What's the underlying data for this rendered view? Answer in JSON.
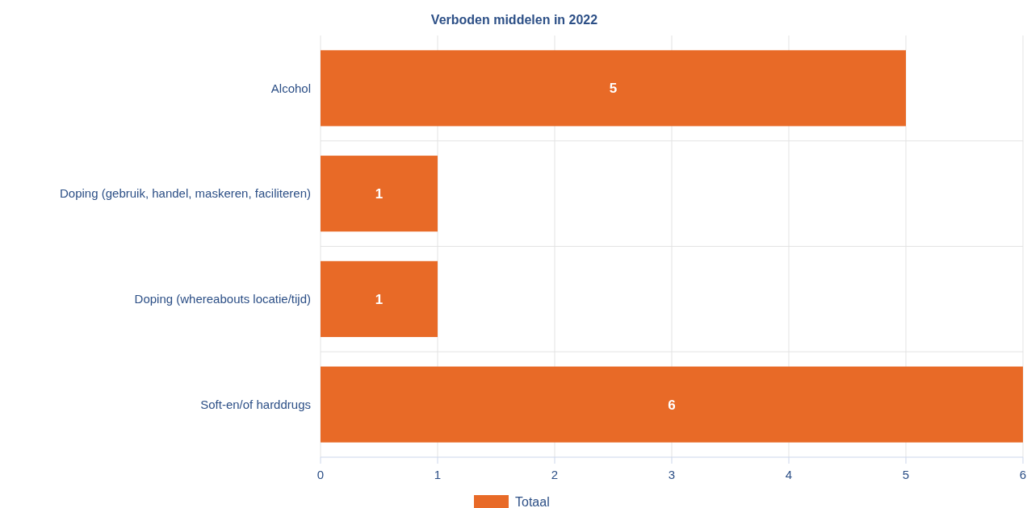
{
  "chart_data": {
    "type": "bar",
    "orientation": "horizontal",
    "title": "Verboden middelen in 2022",
    "categories": [
      "Alcohol",
      "Doping (gebruik, handel, maskeren, faciliteren)",
      "Doping (whereabouts locatie/tijd)",
      "Soft-en/of harddrugs"
    ],
    "series": [
      {
        "name": "Totaal",
        "color": "#e86a27",
        "values": [
          5,
          1,
          1,
          6
        ]
      }
    ],
    "xlim": [
      0,
      6
    ],
    "xticks": [
      0,
      1,
      2,
      3,
      4,
      5,
      6
    ],
    "grid": true,
    "legend": "bottom",
    "data_labels": true
  }
}
